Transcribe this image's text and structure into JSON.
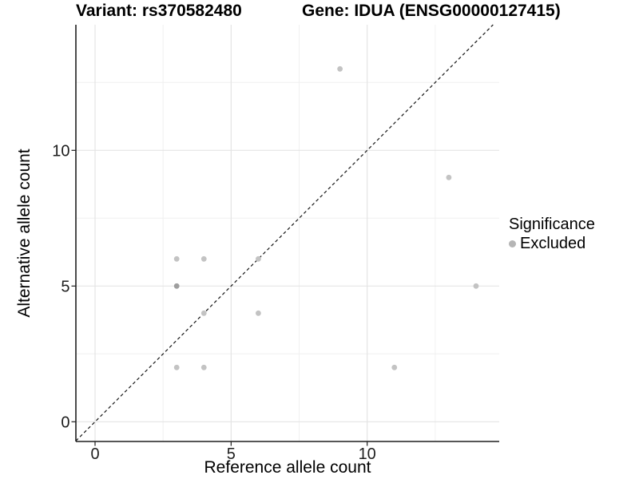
{
  "titles": {
    "variant": "Variant: rs370582480",
    "gene": "Gene: IDUA (ENSG00000127415)"
  },
  "axes": {
    "x": {
      "title": "Reference allele count",
      "tick_labels": [
        "0",
        "5",
        "10"
      ]
    },
    "y": {
      "title": "Alternative allele count",
      "tick_labels": [
        "0",
        "5",
        "10"
      ]
    }
  },
  "legend": {
    "title": "Significance",
    "items": [
      {
        "label": "Excluded",
        "key_shape": "point",
        "key_color": "#b5b5b5"
      }
    ]
  },
  "colors": {
    "point": "#c3c3c3",
    "point_overlap": "#9e9e9e",
    "grid_major": "#e4e4e4",
    "grid_minor": "#f0f0f0",
    "axis_line": "#1e1e1e",
    "tick_text": "#1e1e1e",
    "dashed_line": "#1e1e1e",
    "background": "#ffffff"
  },
  "chart_data": {
    "type": "scatter",
    "title_left": "Variant: rs370582480",
    "title_right": "Gene: IDUA (ENSG00000127415)",
    "xlabel": "Reference allele count",
    "ylabel": "Alternative allele count",
    "xlim": [
      -0.7,
      14.85
    ],
    "ylim": [
      -0.73,
      14.63
    ],
    "x_ticks": [
      0,
      5,
      10
    ],
    "y_ticks": [
      0,
      5,
      10
    ],
    "x_minor_gridlines": [
      2.5,
      7.5,
      12.5
    ],
    "y_minor_gridlines": [
      2.5,
      7.5,
      12.5
    ],
    "grid": true,
    "legend_position": "right",
    "identity_line": {
      "style": "dashed",
      "equation": "y = x"
    },
    "series": [
      {
        "name": "Excluded",
        "points": [
          {
            "x": 3,
            "y": 2,
            "n": 1
          },
          {
            "x": 4,
            "y": 2,
            "n": 1
          },
          {
            "x": 11,
            "y": 2,
            "n": 1
          },
          {
            "x": 4,
            "y": 4,
            "n": 1
          },
          {
            "x": 6,
            "y": 4,
            "n": 1
          },
          {
            "x": 3,
            "y": 5,
            "n": 2
          },
          {
            "x": 14,
            "y": 5,
            "n": 1
          },
          {
            "x": 3,
            "y": 6,
            "n": 1
          },
          {
            "x": 4,
            "y": 6,
            "n": 1
          },
          {
            "x": 6,
            "y": 6,
            "n": 1
          },
          {
            "x": 13,
            "y": 9,
            "n": 1
          },
          {
            "x": 9,
            "y": 13,
            "n": 1
          }
        ]
      }
    ]
  }
}
